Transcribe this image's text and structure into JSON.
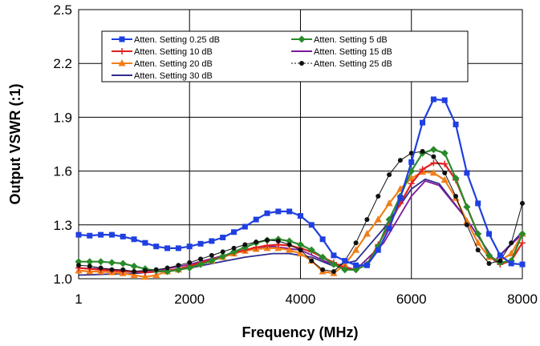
{
  "chart_data": {
    "type": "line",
    "title": "",
    "xlabel": "Frequency (MHz)",
    "ylabel": "Output VSWR (:1)",
    "xlim": [
      1,
      8000
    ],
    "ylim": [
      1.0,
      2.5
    ],
    "x_ticks": [
      1,
      2000,
      4000,
      6000,
      8000
    ],
    "x_tick_labels": [
      "1",
      "2000",
      "4000",
      "6000",
      "8000"
    ],
    "y_ticks": [
      1.0,
      1.3,
      1.6,
      1.9,
      2.2,
      2.5
    ],
    "y_tick_labels": [
      "1.0",
      "1.3",
      "1.6",
      "1.9",
      "2.2",
      "2.5"
    ],
    "grid": "vertical and horizontal at major ticks",
    "legend_position": "top",
    "series": [
      {
        "name": "Atten. Setting 0.25 dB",
        "color": "#1f3fe0",
        "marker": "square",
        "x": [
          1,
          200,
          400,
          600,
          800,
          1000,
          1200,
          1400,
          1600,
          1800,
          2000,
          2200,
          2400,
          2600,
          2800,
          3000,
          3200,
          3400,
          3600,
          3800,
          4000,
          4200,
          4400,
          4600,
          4800,
          5000,
          5200,
          5400,
          5600,
          5800,
          6000,
          6200,
          6400,
          6600,
          6800,
          7000,
          7200,
          7400,
          7600,
          7800,
          8000
        ],
        "y": [
          1.245,
          1.24,
          1.245,
          1.245,
          1.235,
          1.22,
          1.2,
          1.18,
          1.17,
          1.17,
          1.18,
          1.195,
          1.21,
          1.23,
          1.26,
          1.29,
          1.33,
          1.365,
          1.375,
          1.375,
          1.35,
          1.3,
          1.22,
          1.13,
          1.1,
          1.075,
          1.075,
          1.16,
          1.28,
          1.45,
          1.65,
          1.87,
          2.0,
          1.995,
          1.86,
          1.59,
          1.42,
          1.25,
          1.13,
          1.085,
          1.08
        ]
      },
      {
        "name": "Atten. Setting 5 dB",
        "color": "#2a8a2a",
        "marker": "diamond",
        "x": [
          1,
          200,
          400,
          600,
          800,
          1000,
          1200,
          1400,
          1600,
          1800,
          2000,
          2200,
          2400,
          2600,
          2800,
          3000,
          3200,
          3400,
          3600,
          3800,
          4000,
          4200,
          4400,
          4600,
          4800,
          5000,
          5200,
          5400,
          5600,
          5800,
          6000,
          6200,
          6400,
          6600,
          6800,
          7000,
          7200,
          7400,
          7600,
          7800,
          8000
        ],
        "y": [
          1.095,
          1.095,
          1.095,
          1.09,
          1.085,
          1.07,
          1.055,
          1.045,
          1.04,
          1.05,
          1.06,
          1.08,
          1.1,
          1.125,
          1.15,
          1.175,
          1.2,
          1.215,
          1.22,
          1.21,
          1.19,
          1.16,
          1.12,
          1.08,
          1.05,
          1.05,
          1.08,
          1.18,
          1.33,
          1.46,
          1.6,
          1.7,
          1.72,
          1.7,
          1.56,
          1.4,
          1.25,
          1.13,
          1.09,
          1.1,
          1.25
        ]
      },
      {
        "name": "Atten. Setting 10 dB",
        "color": "#e02020",
        "marker": "plus",
        "x": [
          1,
          200,
          400,
          600,
          800,
          1000,
          1200,
          1400,
          1600,
          1800,
          2000,
          2200,
          2400,
          2600,
          2800,
          3000,
          3200,
          3400,
          3600,
          3800,
          4000,
          4200,
          4400,
          4600,
          4800,
          5000,
          5200,
          5400,
          5600,
          5800,
          6000,
          6200,
          6400,
          6600,
          6800,
          7000,
          7200,
          7400,
          7600,
          7800,
          8000
        ],
        "y": [
          1.06,
          1.055,
          1.05,
          1.045,
          1.04,
          1.04,
          1.035,
          1.04,
          1.045,
          1.055,
          1.07,
          1.09,
          1.105,
          1.125,
          1.145,
          1.16,
          1.175,
          1.185,
          1.19,
          1.185,
          1.17,
          1.15,
          1.12,
          1.09,
          1.06,
          1.05,
          1.08,
          1.19,
          1.3,
          1.42,
          1.53,
          1.61,
          1.645,
          1.64,
          1.55,
          1.4,
          1.25,
          1.13,
          1.08,
          1.1,
          1.2
        ]
      },
      {
        "name": "Atten. Setting 15 dB",
        "color": "#7a1a9a",
        "marker": "none",
        "x": [
          1,
          500,
          1000,
          1500,
          2000,
          2500,
          3000,
          3500,
          4000,
          4500,
          5000,
          5500,
          6000,
          6250,
          6500,
          7000,
          7500,
          8000
        ],
        "y": [
          1.06,
          1.055,
          1.04,
          1.05,
          1.08,
          1.12,
          1.16,
          1.18,
          1.16,
          1.09,
          1.05,
          1.2,
          1.46,
          1.545,
          1.52,
          1.33,
          1.1,
          1.25
        ]
      },
      {
        "name": "Atten. Setting 20 dB",
        "color": "#f07f1a",
        "marker": "triangle",
        "x": [
          1,
          200,
          400,
          600,
          800,
          1000,
          1200,
          1400,
          1600,
          1800,
          2000,
          2200,
          2400,
          2600,
          2800,
          3000,
          3200,
          3400,
          3600,
          3800,
          4000,
          4200,
          4400,
          4600,
          4800,
          5000,
          5200,
          5400,
          5600,
          5800,
          6000,
          6200,
          6400,
          6600,
          6800,
          7000,
          7200,
          7400,
          7600,
          7800,
          8000
        ],
        "y": [
          1.045,
          1.04,
          1.04,
          1.035,
          1.03,
          1.02,
          1.01,
          1.02,
          1.04,
          1.05,
          1.07,
          1.085,
          1.1,
          1.12,
          1.14,
          1.155,
          1.165,
          1.17,
          1.17,
          1.16,
          1.14,
          1.1,
          1.04,
          1.03,
          1.08,
          1.16,
          1.25,
          1.33,
          1.42,
          1.5,
          1.56,
          1.595,
          1.59,
          1.55,
          1.45,
          1.32,
          1.2,
          1.12,
          1.1,
          1.14,
          1.25
        ]
      },
      {
        "name": "Atten. Setting 25 dB",
        "color": "#111111",
        "marker": "circle",
        "x": [
          1,
          200,
          400,
          600,
          800,
          1000,
          1200,
          1400,
          1600,
          1800,
          2000,
          2200,
          2400,
          2600,
          2800,
          3000,
          3200,
          3400,
          3600,
          3800,
          4000,
          4200,
          4400,
          4600,
          4800,
          5000,
          5200,
          5400,
          5600,
          5800,
          6000,
          6200,
          6400,
          6600,
          6800,
          7000,
          7200,
          7400,
          7600,
          7800,
          8000
        ],
        "y": [
          1.075,
          1.07,
          1.06,
          1.05,
          1.05,
          1.04,
          1.045,
          1.05,
          1.06,
          1.075,
          1.09,
          1.11,
          1.13,
          1.15,
          1.17,
          1.19,
          1.205,
          1.215,
          1.21,
          1.19,
          1.16,
          1.1,
          1.05,
          1.04,
          1.1,
          1.2,
          1.33,
          1.46,
          1.58,
          1.66,
          1.7,
          1.71,
          1.68,
          1.59,
          1.46,
          1.3,
          1.16,
          1.085,
          1.1,
          1.2,
          1.42
        ]
      },
      {
        "name": "Atten. Setting 30 dB",
        "color": "#2d2d8c",
        "marker": "none",
        "x": [
          1,
          500,
          1000,
          1500,
          2000,
          2500,
          3000,
          3500,
          3800,
          4200,
          4600,
          5000,
          5500,
          6000,
          6250,
          6500,
          7000,
          7500,
          8000
        ],
        "y": [
          1.02,
          1.025,
          1.03,
          1.04,
          1.06,
          1.09,
          1.12,
          1.14,
          1.14,
          1.12,
          1.07,
          1.1,
          1.28,
          1.5,
          1.555,
          1.53,
          1.33,
          1.1,
          1.26
        ]
      }
    ]
  }
}
